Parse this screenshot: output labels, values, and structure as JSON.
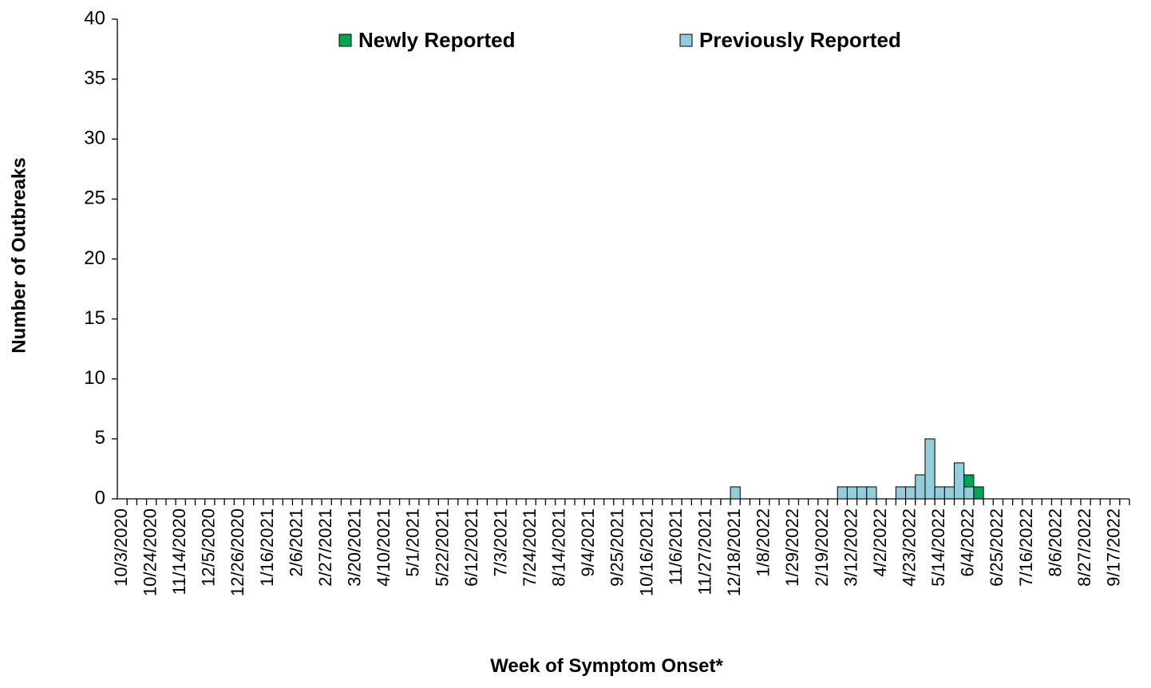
{
  "chart_data": {
    "type": "stacked_bar",
    "y_label": "Number of Outbreaks",
    "x_label": "Week of Symptom  Onset*",
    "categories": [
      "10/3/2020",
      null,
      null,
      "10/24/2020",
      null,
      null,
      "11/14/2020",
      null,
      null,
      "12/5/2020",
      null,
      null,
      "12/26/2020",
      null,
      null,
      "1/16/2021",
      null,
      null,
      "2/6/2021",
      null,
      null,
      "2/27/2021",
      null,
      null,
      "3/20/2021",
      null,
      null,
      "4/10/2021",
      null,
      null,
      "5/1/2021",
      null,
      null,
      "5/22/2021",
      null,
      null,
      "6/12/2021",
      null,
      null,
      "7/3/2021",
      null,
      null,
      "7/24/2021",
      null,
      null,
      "8/14/2021",
      null,
      null,
      "9/4/2021",
      null,
      null,
      "9/25/2021",
      null,
      null,
      "10/16/2021",
      null,
      null,
      "11/6/2021",
      null,
      null,
      "11/27/2021",
      null,
      null,
      "12/18/2021",
      null,
      null,
      "1/8/2022",
      null,
      null,
      "1/29/2022",
      null,
      null,
      "2/19/2022",
      null,
      null,
      "3/12/2022",
      null,
      null,
      "4/2/2022",
      null,
      null,
      "4/23/2022",
      null,
      null,
      "5/14/2022",
      null,
      null,
      "6/4/2022",
      null,
      null,
      "6/25/2022",
      null,
      null,
      "7/16/2022",
      null,
      null,
      "8/6/2022",
      null,
      null,
      "8/27/2022",
      null,
      null,
      "9/17/2022",
      null
    ],
    "series": [
      {
        "name": "Newly Reported",
        "color": "#00a651",
        "values": [
          0,
          0,
          0,
          0,
          0,
          0,
          0,
          0,
          0,
          0,
          0,
          0,
          0,
          0,
          0,
          0,
          0,
          0,
          0,
          0,
          0,
          0,
          0,
          0,
          0,
          0,
          0,
          0,
          0,
          0,
          0,
          0,
          0,
          0,
          0,
          0,
          0,
          0,
          0,
          0,
          0,
          0,
          0,
          0,
          0,
          0,
          0,
          0,
          0,
          0,
          0,
          0,
          0,
          0,
          0,
          0,
          0,
          0,
          0,
          0,
          0,
          0,
          0,
          0,
          0,
          0,
          0,
          0,
          0,
          0,
          0,
          0,
          0,
          0,
          0,
          0,
          0,
          0,
          0,
          0,
          0,
          0,
          0,
          0,
          0,
          0,
          0,
          1,
          1,
          0,
          0,
          0,
          0,
          0,
          0,
          0,
          0,
          0,
          0,
          0,
          0,
          0,
          0,
          0
        ]
      },
      {
        "name": "Previously Reported",
        "color": "#92cddc",
        "values": [
          0,
          0,
          0,
          0,
          0,
          0,
          0,
          0,
          0,
          0,
          0,
          0,
          0,
          0,
          0,
          0,
          0,
          0,
          0,
          0,
          0,
          0,
          0,
          0,
          0,
          0,
          0,
          0,
          0,
          0,
          0,
          0,
          0,
          0,
          0,
          0,
          0,
          0,
          0,
          0,
          0,
          0,
          0,
          0,
          0,
          0,
          0,
          0,
          0,
          0,
          0,
          0,
          0,
          0,
          0,
          0,
          0,
          0,
          0,
          0,
          0,
          0,
          0,
          1,
          0,
          0,
          0,
          0,
          0,
          0,
          0,
          0,
          0,
          0,
          1,
          1,
          1,
          1,
          0,
          0,
          1,
          1,
          2,
          5,
          1,
          1,
          3,
          1,
          0,
          0,
          0,
          0,
          0,
          0,
          0,
          0,
          0,
          0,
          0,
          0,
          0,
          0,
          0,
          0
        ]
      }
    ],
    "ylim": [
      0,
      40
    ],
    "yticks": [
      0,
      5,
      10,
      15,
      20,
      25,
      30,
      35,
      40
    ],
    "grid": false,
    "legend": "top"
  }
}
